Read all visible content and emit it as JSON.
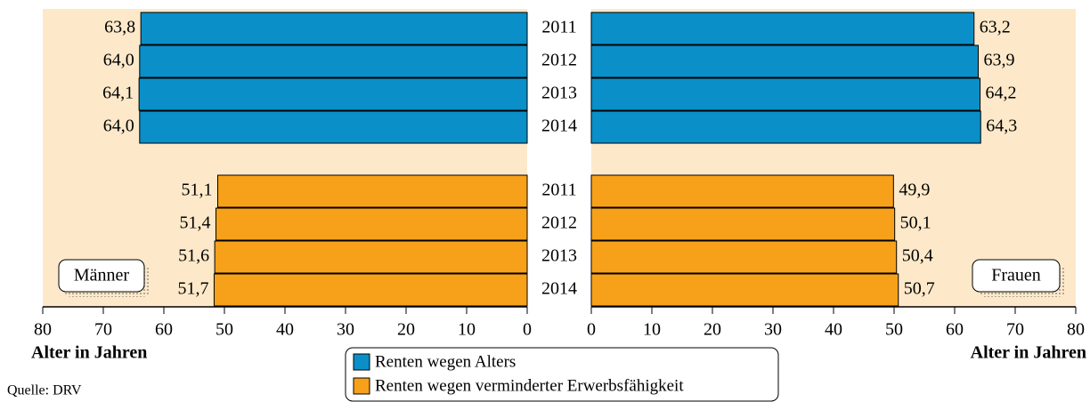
{
  "chart_data": {
    "type": "bar",
    "categories": [
      "2011",
      "2012",
      "2013",
      "2014"
    ],
    "series": [
      {
        "name": "Renten wegen Alters",
        "color": "#0a8fc8"
      },
      {
        "name": "Renten wegen verminderter Erwerbsfähigkeit",
        "color": "#f7a11a"
      }
    ],
    "panels": [
      {
        "name": "Männer",
        "xlabel": "Alter in Jahren",
        "xlim": [
          80,
          0
        ],
        "xticks": [
          80,
          70,
          60,
          50,
          40,
          30,
          20,
          10,
          0
        ],
        "values": [
          [
            63.8,
            64.0,
            64.1,
            64.0
          ],
          [
            51.1,
            51.4,
            51.6,
            51.7
          ]
        ],
        "value_labels": [
          [
            "63,8",
            "64,0",
            "64,1",
            "64,0"
          ],
          [
            "51,1",
            "51,4",
            "51,6",
            "51,7"
          ]
        ]
      },
      {
        "name": "Frauen",
        "xlabel": "Alter in Jahren",
        "xlim": [
          0,
          80
        ],
        "xticks": [
          0,
          10,
          20,
          30,
          40,
          50,
          60,
          70,
          80
        ],
        "values": [
          [
            63.2,
            63.9,
            64.2,
            64.3
          ],
          [
            49.9,
            50.1,
            50.4,
            50.7
          ]
        ],
        "value_labels": [
          [
            "63,2",
            "63,9",
            "64,2",
            "64,3"
          ],
          [
            "49,9",
            "50,1",
            "50,4",
            "50,7"
          ]
        ]
      }
    ],
    "source": "Quelle: DRV"
  }
}
